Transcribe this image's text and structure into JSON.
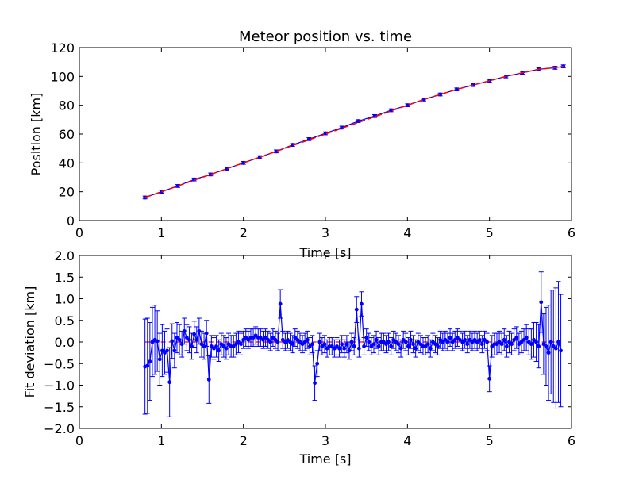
{
  "chart_data": [
    {
      "type": "line",
      "title": "Meteor position vs. time",
      "xlabel": "Time [s]",
      "ylabel": "Position [km]",
      "xlim": [
        0,
        6
      ],
      "ylim": [
        0,
        120
      ],
      "xticks": [
        "0",
        "1",
        "2",
        "3",
        "4",
        "5",
        "6"
      ],
      "yticks": [
        "0",
        "20",
        "40",
        "60",
        "80",
        "100",
        "120"
      ],
      "grid": false,
      "series": [
        {
          "color": "#0000ff",
          "marker": "dot",
          "error_bars": true,
          "x": [
            0.8,
            1.0,
            1.2,
            1.4,
            1.6,
            1.8,
            2.0,
            2.2,
            2.4,
            2.6,
            2.8,
            3.0,
            3.2,
            3.4,
            3.6,
            3.8,
            4.0,
            4.2,
            4.4,
            4.6,
            4.8,
            5.0,
            5.2,
            5.4,
            5.6,
            5.8,
            5.9
          ],
          "y": [
            16.0,
            20.0,
            24.0,
            28.5,
            32.0,
            36.0,
            40.0,
            44.0,
            48.0,
            52.5,
            56.5,
            60.5,
            64.5,
            69.0,
            72.5,
            76.5,
            80.0,
            84.0,
            87.5,
            91.0,
            94.0,
            97.0,
            100.0,
            102.5,
            105.0,
            106.0,
            107.0
          ],
          "yerr": 1.0
        },
        {
          "color": "#ff0000",
          "style": "dashed-fit",
          "x": [
            0.8,
            1.0,
            1.2,
            1.4,
            1.6,
            1.8,
            2.0,
            2.2,
            2.4,
            2.6,
            2.8,
            3.0,
            3.2,
            3.4,
            3.6,
            3.8,
            4.0,
            4.2,
            4.4,
            4.6,
            4.8,
            5.0,
            5.2,
            5.4,
            5.6,
            5.8,
            5.9
          ],
          "y": [
            16.0,
            20.0,
            24.0,
            28.0,
            32.0,
            36.0,
            40.0,
            44.0,
            48.0,
            52.0,
            56.0,
            60.0,
            64.0,
            68.0,
            72.0,
            76.0,
            80.0,
            84.0,
            87.5,
            91.0,
            94.0,
            97.0,
            100.0,
            102.5,
            105.0,
            106.0,
            107.0
          ]
        }
      ]
    },
    {
      "type": "line",
      "title": "",
      "xlabel": "Time [s]",
      "ylabel": "Fit deviation [km]",
      "xlim": [
        0,
        6
      ],
      "ylim": [
        -2.0,
        2.0
      ],
      "xticks": [
        "0",
        "1",
        "2",
        "3",
        "4",
        "5",
        "6"
      ],
      "yticks": [
        "−2.0",
        "−1.5",
        "−1.0",
        "−0.5",
        "0.0",
        "0.5",
        "1.0",
        "1.5",
        "2.0"
      ],
      "grid": false,
      "zero_line_color": "#ff0000",
      "series": [
        {
          "color": "#0000ff",
          "marker": "dot",
          "error_bars": true,
          "x": [
            0.8,
            0.83,
            0.86,
            0.89,
            0.92,
            0.95,
            0.98,
            1.01,
            1.04,
            1.07,
            1.1,
            1.13,
            1.16,
            1.19,
            1.22,
            1.25,
            1.28,
            1.31,
            1.34,
            1.37,
            1.4,
            1.43,
            1.46,
            1.49,
            1.52,
            1.55,
            1.58,
            1.61,
            1.64,
            1.67,
            1.7,
            1.73,
            1.76,
            1.79,
            1.82,
            1.85,
            1.88,
            1.91,
            1.94,
            1.97,
            2.0,
            2.03,
            2.06,
            2.09,
            2.12,
            2.15,
            2.18,
            2.21,
            2.24,
            2.27,
            2.3,
            2.33,
            2.36,
            2.39,
            2.42,
            2.45,
            2.48,
            2.51,
            2.54,
            2.57,
            2.6,
            2.63,
            2.66,
            2.69,
            2.72,
            2.75,
            2.78,
            2.81,
            2.84,
            2.87,
            2.9,
            2.93,
            2.96,
            2.99,
            3.02,
            3.05,
            3.08,
            3.11,
            3.14,
            3.17,
            3.2,
            3.23,
            3.26,
            3.29,
            3.32,
            3.35,
            3.38,
            3.41,
            3.44,
            3.47,
            3.5,
            3.53,
            3.56,
            3.59,
            3.62,
            3.65,
            3.68,
            3.71,
            3.74,
            3.77,
            3.8,
            3.83,
            3.86,
            3.89,
            3.92,
            3.95,
            3.98,
            4.01,
            4.04,
            4.07,
            4.1,
            4.13,
            4.16,
            4.19,
            4.22,
            4.25,
            4.28,
            4.31,
            4.34,
            4.37,
            4.4,
            4.43,
            4.46,
            4.49,
            4.52,
            4.55,
            4.58,
            4.61,
            4.64,
            4.67,
            4.7,
            4.73,
            4.76,
            4.79,
            4.82,
            4.85,
            4.88,
            4.91,
            4.94,
            4.97,
            5.0,
            5.03,
            5.06,
            5.09,
            5.12,
            5.15,
            5.18,
            5.21,
            5.24,
            5.27,
            5.3,
            5.33,
            5.36,
            5.39,
            5.42,
            5.45,
            5.48,
            5.51,
            5.54,
            5.57,
            5.6,
            5.63,
            5.66,
            5.69,
            5.72,
            5.75,
            5.78,
            5.81,
            5.84,
            5.87
          ],
          "y": [
            -0.57,
            -0.55,
            -0.45,
            0.0,
            0.05,
            0.02,
            -0.4,
            -0.2,
            -0.25,
            -0.2,
            -0.93,
            0.02,
            -0.2,
            0.1,
            0.05,
            -0.05,
            0.25,
            0.1,
            0.05,
            -0.1,
            0.18,
            0.05,
            0.25,
            -0.05,
            -0.1,
            0.2,
            -0.87,
            -0.1,
            -0.15,
            -0.1,
            -0.2,
            -0.05,
            -0.1,
            -0.15,
            -0.05,
            -0.1,
            -0.1,
            -0.05,
            0.0,
            -0.05,
            0.05,
            0.1,
            0.05,
            0.1,
            0.1,
            0.15,
            0.1,
            0.1,
            0.05,
            0.1,
            0.05,
            0.0,
            0.1,
            0.05,
            0.0,
            0.88,
            0.05,
            0.0,
            0.05,
            0.0,
            -0.05,
            0.1,
            0.05,
            0.0,
            -0.05,
            0.0,
            0.05,
            -0.1,
            -0.05,
            -0.95,
            -0.5,
            0.0,
            -0.1,
            -0.05,
            -0.15,
            -0.1,
            -0.1,
            -0.15,
            -0.1,
            -0.15,
            -0.05,
            -0.15,
            -0.05,
            -0.2,
            0.0,
            -0.1,
            0.75,
            -0.15,
            0.88,
            -0.1,
            0.1,
            0.0,
            -0.1,
            -0.05,
            0.05,
            -0.1,
            0.0,
            0.0,
            -0.05,
            0.0,
            -0.1,
            0.05,
            0.0,
            -0.05,
            -0.15,
            0.05,
            0.0,
            -0.1,
            0.05,
            -0.05,
            -0.15,
            0.0,
            -0.05,
            -0.1,
            -0.1,
            -0.05,
            -0.15,
            0.0,
            -0.05,
            -0.1,
            0.05,
            0.0,
            0.05,
            0.0,
            0.1,
            0.0,
            0.05,
            0.1,
            0.05,
            0.0,
            0.05,
            -0.05,
            0.05,
            0.0,
            0.05,
            0.0,
            0.05,
            -0.05,
            0.05,
            0.0,
            -0.85,
            -0.1,
            -0.05,
            -0.05,
            0.0,
            -0.05,
            0.05,
            -0.1,
            0.0,
            -0.05,
            0.05,
            0.1,
            -0.05,
            0.0,
            0.05,
            0.1,
            0.0,
            -0.05,
            0.05,
            0.0,
            -0.1,
            0.92,
            -0.05,
            -0.1,
            -0.25,
            0.0,
            -0.1,
            -0.15,
            0.0,
            -0.2
          ],
          "yerr": [
            1.1,
            1.1,
            0.9,
            0.8,
            0.8,
            0.7,
            0.6,
            0.6,
            0.5,
            0.5,
            0.8,
            0.4,
            0.4,
            0.35,
            0.35,
            0.3,
            0.3,
            0.3,
            0.3,
            0.3,
            0.3,
            0.3,
            0.3,
            0.3,
            0.3,
            0.3,
            0.55,
            0.25,
            0.25,
            0.25,
            0.25,
            0.25,
            0.25,
            0.25,
            0.25,
            0.25,
            0.25,
            0.25,
            0.25,
            0.25,
            0.2,
            0.2,
            0.2,
            0.2,
            0.2,
            0.2,
            0.2,
            0.2,
            0.2,
            0.2,
            0.2,
            0.2,
            0.2,
            0.2,
            0.2,
            0.33,
            0.2,
            0.2,
            0.2,
            0.2,
            0.2,
            0.2,
            0.2,
            0.2,
            0.2,
            0.2,
            0.2,
            0.2,
            0.2,
            0.4,
            0.3,
            0.2,
            0.2,
            0.2,
            0.2,
            0.2,
            0.2,
            0.2,
            0.2,
            0.2,
            0.2,
            0.2,
            0.2,
            0.2,
            0.2,
            0.2,
            0.3,
            0.2,
            0.28,
            0.2,
            0.2,
            0.2,
            0.2,
            0.2,
            0.2,
            0.2,
            0.2,
            0.2,
            0.2,
            0.2,
            0.2,
            0.2,
            0.2,
            0.2,
            0.2,
            0.2,
            0.2,
            0.2,
            0.2,
            0.2,
            0.2,
            0.2,
            0.2,
            0.2,
            0.2,
            0.2,
            0.2,
            0.2,
            0.2,
            0.2,
            0.2,
            0.2,
            0.2,
            0.2,
            0.2,
            0.2,
            0.2,
            0.2,
            0.2,
            0.2,
            0.2,
            0.2,
            0.2,
            0.2,
            0.2,
            0.2,
            0.2,
            0.2,
            0.2,
            0.2,
            0.3,
            0.25,
            0.25,
            0.25,
            0.25,
            0.25,
            0.25,
            0.25,
            0.25,
            0.25,
            0.25,
            0.25,
            0.25,
            0.25,
            0.25,
            0.3,
            0.3,
            0.35,
            0.4,
            0.45,
            0.5,
            0.7,
            0.7,
            0.9,
            1.1,
            1.2,
            1.3,
            1.4,
            1.4,
            1.3
          ]
        }
      ]
    }
  ]
}
